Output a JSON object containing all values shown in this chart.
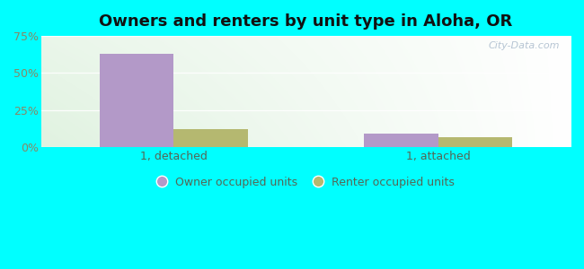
{
  "title": "Owners and renters by unit type in Aloha, OR",
  "categories": [
    "1, detached",
    "1, attached"
  ],
  "owner_values": [
    63.0,
    9.0
  ],
  "renter_values": [
    12.0,
    7.0
  ],
  "owner_color": "#b399c8",
  "renter_color": "#b5b870",
  "ylim": [
    0,
    75
  ],
  "yticks": [
    0,
    25,
    50,
    75
  ],
  "yticklabels": [
    "0%",
    "25%",
    "50%",
    "75%"
  ],
  "background_color": "#00ffff",
  "title_fontsize": 13,
  "legend_labels": [
    "Owner occupied units",
    "Renter occupied units"
  ],
  "bar_width": 0.28,
  "watermark": "City-Data.com",
  "grid_color": "#ddddcc",
  "tick_color": "#888866",
  "label_color": "#556655"
}
